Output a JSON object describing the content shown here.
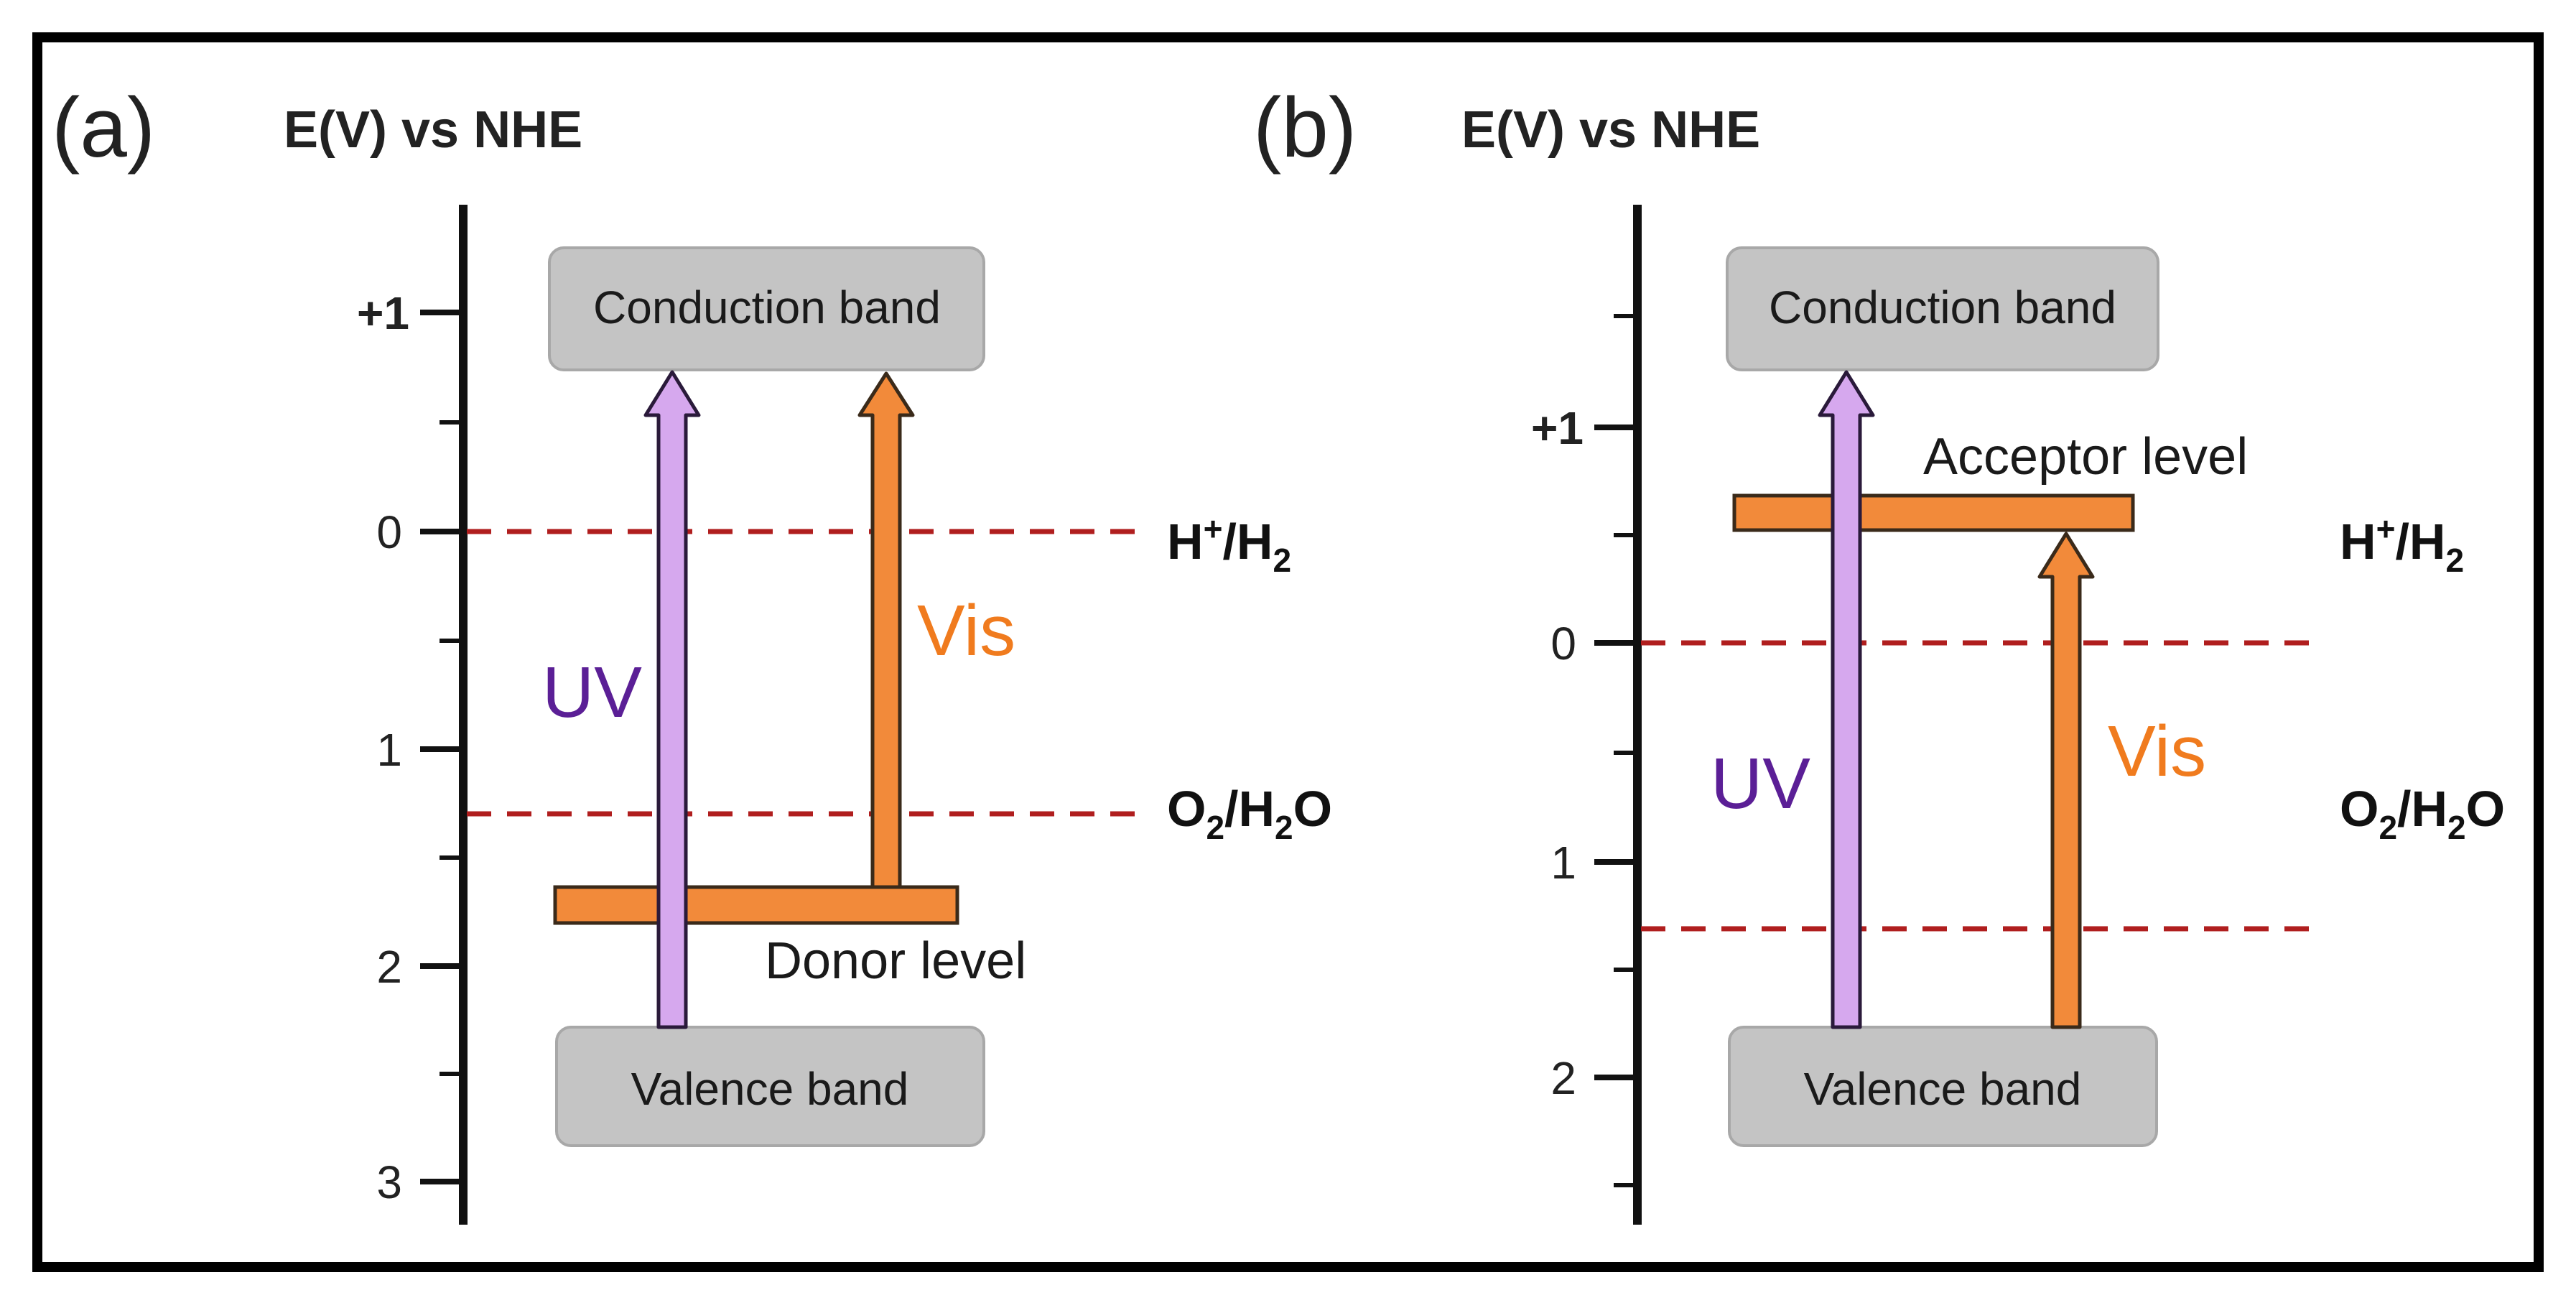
{
  "colors": {
    "border": "#000000",
    "axis": "#111111",
    "band_fill": "#c4c4c4",
    "band_stroke": "#a8a8a8",
    "redox_line": "#b01e1e",
    "uv_arrow": "#d6a8ee",
    "uv_text": "#5b1f96",
    "vis_arrow": "#f28a3a",
    "vis_text": "#f07b1e",
    "level_bar": "#f28a3a"
  },
  "panel_a": {
    "panel_label": "(a)",
    "axis_title": "E(V) vs NHE",
    "tick_labels": [
      "+1",
      "0",
      "1",
      "2",
      "3"
    ],
    "conduction_band": "Conduction band",
    "valence_band": "Valence band",
    "impurity_level": "Donor level",
    "uv_label": "UV",
    "vis_label": "Vis",
    "redox_h": {
      "pre": "H",
      "sup": "+",
      "mid": "/H",
      "sub": "2"
    },
    "redox_o": {
      "pre": "O",
      "sub1": "2",
      "mid": "/H",
      "sub2": "2",
      "post": "O"
    }
  },
  "panel_b": {
    "panel_label": "(b)",
    "axis_title": "E(V) vs NHE",
    "tick_labels": [
      "+1",
      "0",
      "1",
      "2"
    ],
    "conduction_band": "Conduction band",
    "valence_band": "Valence band",
    "impurity_level": "Acceptor level",
    "uv_label": "UV",
    "vis_label": "Vis",
    "redox_h": {
      "pre": "H",
      "sup": "+",
      "mid": "/H",
      "sub": "2"
    },
    "redox_o": {
      "pre": "O",
      "sub1": "2",
      "mid": "/H",
      "sub2": "2",
      "post": "O"
    }
  }
}
